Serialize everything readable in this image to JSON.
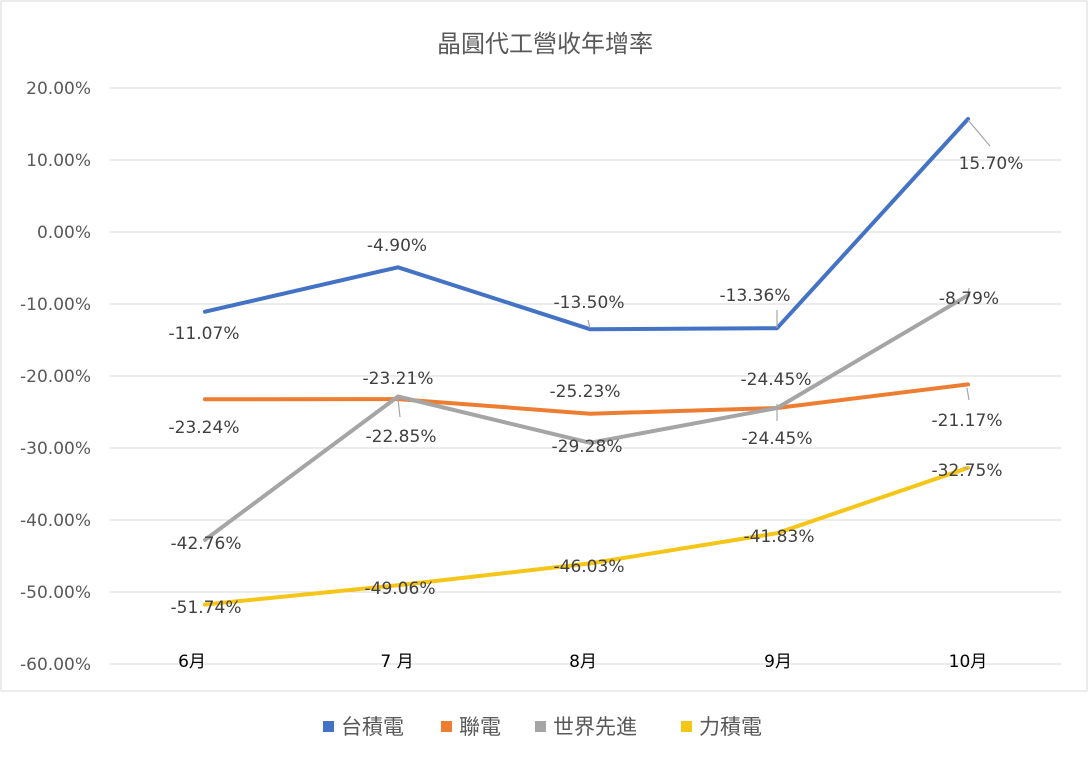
{
  "chart_data": {
    "type": "line",
    "title": "晶圓代工營收年增率",
    "categories": [
      "6月",
      "7 月",
      "8月",
      "9月",
      "10月"
    ],
    "ylim": [
      -60,
      20
    ],
    "yticks": [
      20,
      10,
      0,
      -10,
      -20,
      -30,
      -40,
      -50,
      -60
    ],
    "ytick_labels": [
      "20.00%",
      "10.00%",
      "0.00%",
      "-10.00%",
      "-20.00%",
      "-30.00%",
      "-40.00%",
      "-50.00%",
      "-60.00%"
    ],
    "grid": true,
    "legend_position": "bottom",
    "series": [
      {
        "name": "台積電",
        "color": "#4472C4",
        "values": [
          -11.07,
          -4.9,
          -13.5,
          -13.36,
          15.7
        ],
        "labels": [
          "-11.07%",
          "-4.90%",
          "-13.50%",
          "-13.36%",
          "15.70%"
        ]
      },
      {
        "name": "聯電",
        "color": "#ED7D31",
        "values": [
          -23.24,
          -23.21,
          -25.23,
          -24.45,
          -21.17
        ],
        "labels": [
          "-23.24%",
          "-23.21%",
          "-25.23%",
          "-24.45%",
          "-21.17%"
        ]
      },
      {
        "name": "世界先進",
        "color": "#A5A5A5",
        "values": [
          -42.76,
          -22.85,
          -29.28,
          -24.45,
          -8.79
        ],
        "labels": [
          "-42.76%",
          "-22.85%",
          "-29.28%",
          "-24.45%",
          "-8.79%"
        ]
      },
      {
        "name": "力積電",
        "color": "#F5C518",
        "values": [
          -51.74,
          -49.06,
          -46.03,
          -41.83,
          -32.75
        ],
        "labels": [
          "-51.74%",
          "-49.06%",
          "-46.03%",
          "-41.83%",
          "-32.75%"
        ]
      }
    ]
  }
}
